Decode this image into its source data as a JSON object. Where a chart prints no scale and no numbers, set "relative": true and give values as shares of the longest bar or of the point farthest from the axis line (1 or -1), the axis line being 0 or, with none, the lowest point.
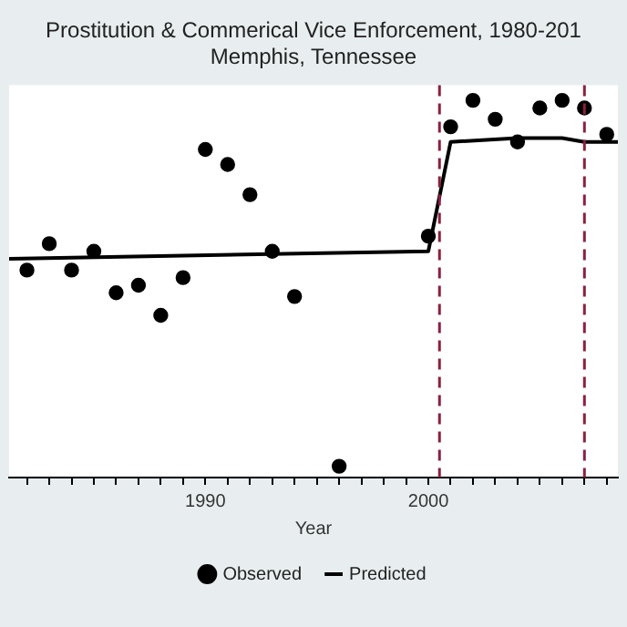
{
  "chart_data": {
    "type": "scatter",
    "title": "Prostitution & Commerical Vice Enforcement, 1980-201",
    "subtitle": "Memphis, Tennessee",
    "xlabel": "Year",
    "relative": true,
    "xlim": [
      1981.2,
      2008.5
    ],
    "xticks": [
      {
        "value": 1982,
        "label": null
      },
      {
        "value": 1983,
        "label": null
      },
      {
        "value": 1984,
        "label": null
      },
      {
        "value": 1985,
        "label": null
      },
      {
        "value": 1986,
        "label": null
      },
      {
        "value": 1987,
        "label": null
      },
      {
        "value": 1988,
        "label": null
      },
      {
        "value": 1989,
        "label": null
      },
      1990,
      {
        "value": 1991,
        "label": null
      },
      {
        "value": 1992,
        "label": null
      },
      {
        "value": 1993,
        "label": null
      },
      {
        "value": 1994,
        "label": null
      },
      {
        "value": 1995,
        "label": null
      },
      {
        "value": 1996,
        "label": null
      },
      {
        "value": 1997,
        "label": null
      },
      {
        "value": 1998,
        "label": null
      },
      {
        "value": 1999,
        "label": null
      },
      2000,
      {
        "value": 2001,
        "label": null
      },
      {
        "value": 2002,
        "label": null
      },
      {
        "value": 2003,
        "label": null
      },
      {
        "value": 2004,
        "label": null
      },
      {
        "value": 2005,
        "label": null
      },
      {
        "value": 2006,
        "label": null
      },
      {
        "value": 2007,
        "label": null
      },
      {
        "value": 2008,
        "label": null
      }
    ],
    "series": [
      {
        "type": "scatter",
        "name": "Observed",
        "color": "#000000",
        "marker": "circle",
        "x": [
          1982,
          1983,
          1984,
          1985,
          1986,
          1987,
          1988,
          1989,
          1990,
          1991,
          1992,
          1993,
          1994,
          1996,
          2000,
          2001,
          2002,
          2003,
          2004,
          2005,
          2006,
          2007,
          2008
        ],
        "values": [
          0.55,
          0.62,
          0.55,
          0.6,
          0.49,
          0.51,
          0.43,
          0.53,
          0.87,
          0.83,
          0.75,
          0.6,
          0.48,
          0.03,
          0.64,
          0.93,
          1,
          0.95,
          0.89,
          0.98,
          1,
          0.98,
          0.91
        ]
      },
      {
        "type": "line",
        "name": "Predicted",
        "color": "#000000",
        "x": [
          1981.2,
          2000,
          2001,
          2004,
          2006,
          2007,
          2008.5
        ],
        "values": [
          0.58,
          0.6,
          0.89,
          0.9,
          0.9,
          0.89,
          0.89
        ]
      }
    ],
    "ref_lines": [
      {
        "axis": "x",
        "value": 2000.5,
        "color": "#8b2040",
        "line_style": "dashed"
      },
      {
        "axis": "x",
        "value": 2007,
        "color": "#8b2040",
        "line_style": "dashed"
      }
    ],
    "legend": "bottom"
  }
}
